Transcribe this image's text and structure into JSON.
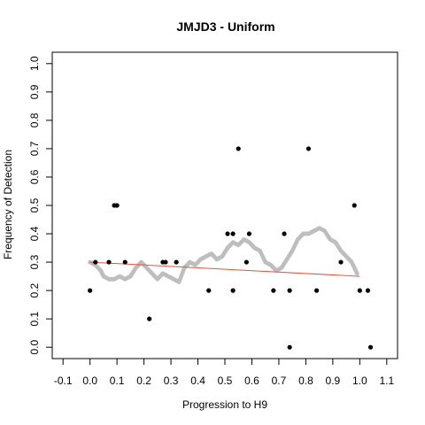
{
  "chart_data": {
    "type": "scatter",
    "title": "JMJD3 - Uniform",
    "xlabel": "Progression to H9",
    "ylabel": "Frequency of Detection",
    "xlim": [
      -0.14,
      1.14
    ],
    "ylim": [
      -0.04,
      1.04
    ],
    "x_ticks": [
      -0.1,
      0.0,
      0.1,
      0.2,
      0.3,
      0.4,
      0.5,
      0.6,
      0.7,
      0.8,
      0.9,
      1.0,
      1.1
    ],
    "x_tick_labels": [
      "-0.1",
      "0.0",
      "0.1",
      "0.2",
      "0.3",
      "0.4",
      "0.5",
      "0.6",
      "0.7",
      "0.8",
      "0.9",
      "1.0",
      "1.1"
    ],
    "y_ticks": [
      0.0,
      0.1,
      0.2,
      0.3,
      0.4,
      0.5,
      0.6,
      0.7,
      0.8,
      0.9,
      1.0
    ],
    "y_tick_labels": [
      "0.0",
      "0.1",
      "0.2",
      "0.3",
      "0.4",
      "0.5",
      "0.6",
      "0.7",
      "0.8",
      "0.9",
      "1.0"
    ],
    "grid": false,
    "colors": {
      "points": "#000000",
      "smooth": "#bebebe",
      "fit": "#e8533f",
      "axis": "#000000"
    },
    "points": [
      {
        "x": 0.0,
        "y": 0.2
      },
      {
        "x": 0.02,
        "y": 0.3
      },
      {
        "x": 0.07,
        "y": 0.3
      },
      {
        "x": 0.09,
        "y": 0.5
      },
      {
        "x": 0.1,
        "y": 0.5
      },
      {
        "x": 0.13,
        "y": 0.3
      },
      {
        "x": 0.22,
        "y": 0.1
      },
      {
        "x": 0.27,
        "y": 0.3
      },
      {
        "x": 0.28,
        "y": 0.3
      },
      {
        "x": 0.32,
        "y": 0.3
      },
      {
        "x": 0.44,
        "y": 0.2
      },
      {
        "x": 0.51,
        "y": 0.4
      },
      {
        "x": 0.53,
        "y": 0.4
      },
      {
        "x": 0.53,
        "y": 0.2
      },
      {
        "x": 0.55,
        "y": 0.7
      },
      {
        "x": 0.58,
        "y": 0.3
      },
      {
        "x": 0.59,
        "y": 0.4
      },
      {
        "x": 0.68,
        "y": 0.2
      },
      {
        "x": 0.72,
        "y": 0.4
      },
      {
        "x": 0.74,
        "y": 0.2
      },
      {
        "x": 0.74,
        "y": 0.0
      },
      {
        "x": 0.81,
        "y": 0.7
      },
      {
        "x": 0.84,
        "y": 0.2
      },
      {
        "x": 0.93,
        "y": 0.3
      },
      {
        "x": 0.98,
        "y": 0.5
      },
      {
        "x": 1.0,
        "y": 0.2
      },
      {
        "x": 1.03,
        "y": 0.2
      },
      {
        "x": 1.04,
        "y": 0.0
      }
    ],
    "smooth_curve": [
      [
        0.0,
        0.3
      ],
      [
        0.02,
        0.29
      ],
      [
        0.04,
        0.27
      ],
      [
        0.05,
        0.25
      ],
      [
        0.07,
        0.24
      ],
      [
        0.09,
        0.24
      ],
      [
        0.11,
        0.25
      ],
      [
        0.13,
        0.24
      ],
      [
        0.15,
        0.25
      ],
      [
        0.17,
        0.28
      ],
      [
        0.19,
        0.3
      ],
      [
        0.21,
        0.28
      ],
      [
        0.23,
        0.26
      ],
      [
        0.25,
        0.24
      ],
      [
        0.27,
        0.26
      ],
      [
        0.29,
        0.25
      ],
      [
        0.31,
        0.24
      ],
      [
        0.33,
        0.23
      ],
      [
        0.35,
        0.28
      ],
      [
        0.37,
        0.3
      ],
      [
        0.39,
        0.29
      ],
      [
        0.41,
        0.31
      ],
      [
        0.43,
        0.32
      ],
      [
        0.45,
        0.33
      ],
      [
        0.47,
        0.31
      ],
      [
        0.49,
        0.32
      ],
      [
        0.51,
        0.35
      ],
      [
        0.53,
        0.37
      ],
      [
        0.55,
        0.36
      ],
      [
        0.57,
        0.38
      ],
      [
        0.59,
        0.37
      ],
      [
        0.61,
        0.35
      ],
      [
        0.63,
        0.34
      ],
      [
        0.65,
        0.3
      ],
      [
        0.67,
        0.29
      ],
      [
        0.69,
        0.27
      ],
      [
        0.71,
        0.28
      ],
      [
        0.73,
        0.31
      ],
      [
        0.75,
        0.34
      ],
      [
        0.77,
        0.38
      ],
      [
        0.79,
        0.4
      ],
      [
        0.81,
        0.4
      ],
      [
        0.83,
        0.41
      ],
      [
        0.85,
        0.42
      ],
      [
        0.87,
        0.41
      ],
      [
        0.89,
        0.38
      ],
      [
        0.91,
        0.37
      ],
      [
        0.93,
        0.34
      ],
      [
        0.95,
        0.32
      ],
      [
        0.97,
        0.3
      ],
      [
        0.99,
        0.26
      ]
    ],
    "fit_line": {
      "x": [
        0.0,
        1.0
      ],
      "y": [
        0.3,
        0.25
      ]
    }
  }
}
